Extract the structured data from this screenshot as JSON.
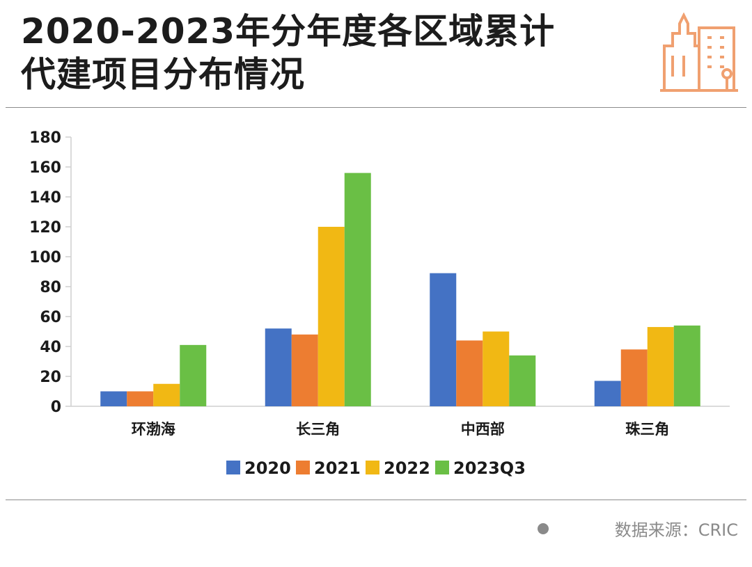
{
  "header": {
    "title_line1": "2020-2023年分年度各区域累计",
    "title_line2": "代建项目分布情况"
  },
  "icons": {
    "title_icon": "city-buildings-icon"
  },
  "colors": {
    "accent_icon": "#f0a070",
    "axis": "#cfcfcf",
    "text": "#1a1a1a",
    "source_text": "#8a8a8a"
  },
  "chart_data": {
    "type": "bar",
    "categories": [
      "环渤海",
      "长三角",
      "中西部",
      "珠三角"
    ],
    "series": [
      {
        "name": "2020",
        "color": "#4472c4",
        "values": [
          10,
          52,
          89,
          17
        ]
      },
      {
        "name": "2021",
        "color": "#ed7d31",
        "values": [
          10,
          48,
          44,
          38
        ]
      },
      {
        "name": "2022",
        "color": "#f1b814",
        "values": [
          15,
          120,
          50,
          53
        ]
      },
      {
        "name": "2023Q3",
        "color": "#6abf45",
        "values": [
          41,
          156,
          34,
          54
        ]
      }
    ],
    "yticks": [
      0,
      20,
      40,
      60,
      80,
      100,
      120,
      140,
      160,
      180
    ],
    "ylim": [
      0,
      180
    ],
    "grid": false,
    "legend_position": "bottom-center"
  },
  "footer": {
    "source": "数据来源：CRIC"
  }
}
